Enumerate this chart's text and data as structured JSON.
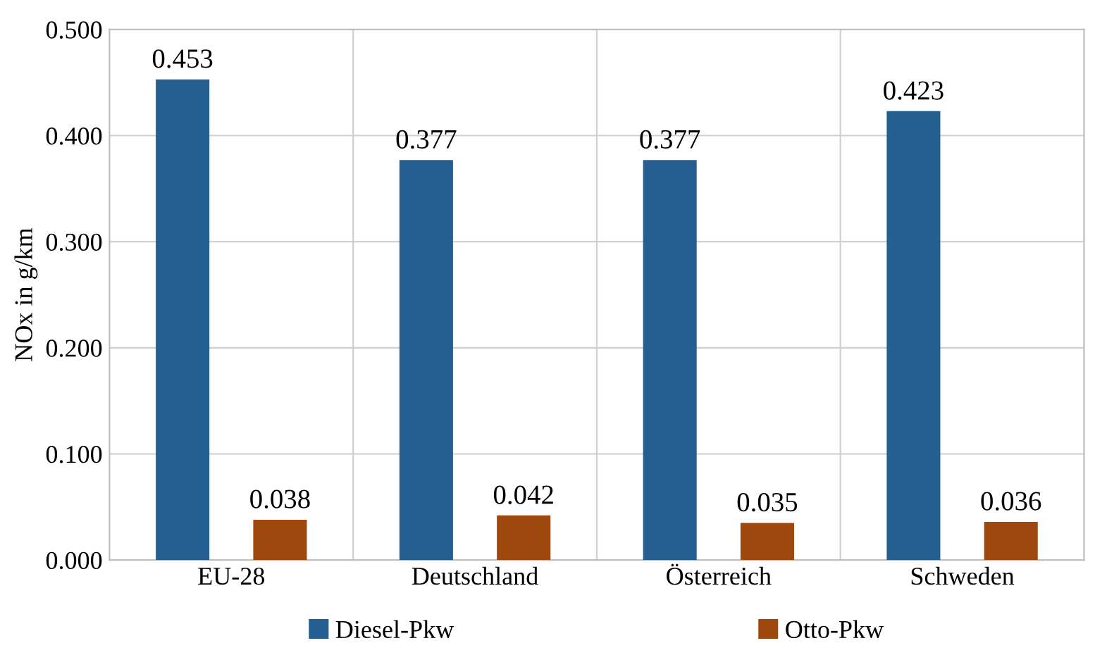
{
  "chart_data": {
    "type": "bar",
    "ylabel": "NOx in g/km",
    "categories": [
      "EU-28",
      "Deutschland",
      "Österreich",
      "Schweden"
    ],
    "series": [
      {
        "name": "Diesel-Pkw",
        "color": "#255e91",
        "values": [
          0.453,
          0.377,
          0.377,
          0.423
        ]
      },
      {
        "name": "Otto-Pkw",
        "color": "#9e480e",
        "values": [
          0.038,
          0.042,
          0.035,
          0.036
        ]
      }
    ],
    "ylim": [
      0,
      0.5
    ],
    "yticks": [
      {
        "value": 0,
        "label": "0.000"
      },
      {
        "value": 0.1,
        "label": "0.100"
      },
      {
        "value": 0.2,
        "label": "0.200"
      },
      {
        "value": 0.3,
        "label": "0.300"
      },
      {
        "value": 0.4,
        "label": "0.400"
      },
      {
        "value": 0.5,
        "label": "0.500"
      }
    ],
    "grid": true,
    "legend": "bottom",
    "data_labels": true
  }
}
